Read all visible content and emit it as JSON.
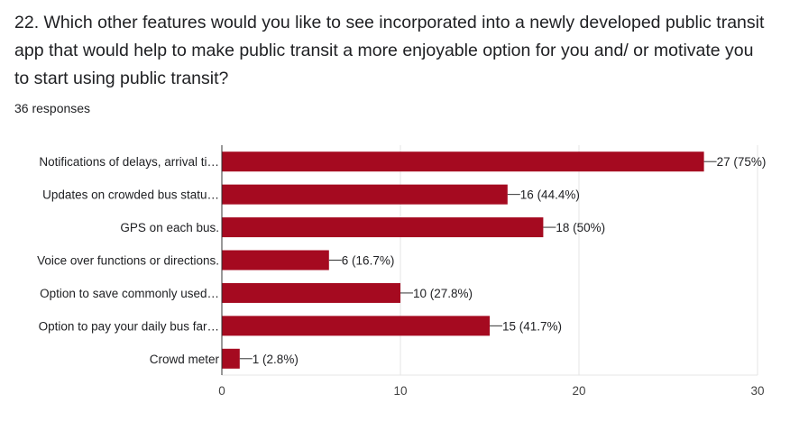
{
  "question": {
    "title": "22. Which other features would you like to see incorporated into a newly developed public transit app that would help to make public transit a more enjoyable option for you and/ or motivate you to start using public transit?",
    "responses": "36 responses"
  },
  "colors": {
    "bar": "#a50a20",
    "grid": "#e6e6e6",
    "axis": "#333333"
  },
  "chart_data": {
    "type": "bar",
    "orientation": "horizontal",
    "categories": [
      "Notifications of delays, arrival ti…",
      "Updates on crowded bus statu…",
      "GPS on each bus.",
      "Voice over functions or directions.",
      "Option to save commonly used…",
      "Option to pay your daily bus far…",
      "Crowd meter"
    ],
    "values": [
      27,
      16,
      18,
      6,
      10,
      15,
      1
    ],
    "value_labels": [
      "27 (75%)",
      "16 (44.4%)",
      "18 (50%)",
      "6 (16.7%)",
      "10 (27.8%)",
      "15 (41.7%)",
      "1 (2.8%)"
    ],
    "xlim": [
      0,
      30
    ],
    "xticks": [
      0,
      10,
      20,
      30
    ],
    "grid": true
  }
}
